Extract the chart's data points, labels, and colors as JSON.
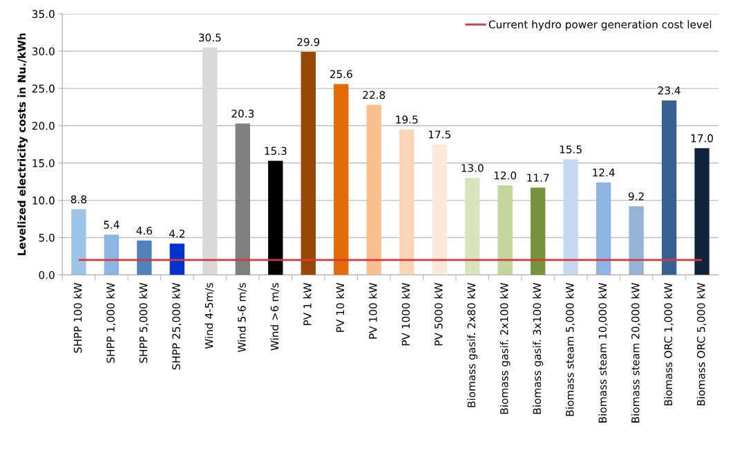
{
  "chart_data": {
    "type": "bar",
    "ylabel": "Levelized electricity costs in Nu./kWh",
    "categories": [
      "SHPP 100 kW",
      "SHPP 1,000 kW",
      "SHPP 5,000 kW",
      "SHPP 25,000 kW",
      "Wind 4-5m/s",
      "Wind 5-6 m/s",
      "Wind >6 m/s",
      "PV 1 kW",
      "PV 10 kW",
      "PV 100 kW",
      "PV 1000 kW",
      "PV 5000 kW",
      "Biomass gasif. 2x80 kW",
      "Biomass gasif. 2x100 kW",
      "Biomass gasif. 3x100 kW",
      "Biomass steam 5,000 kW",
      "Biomass steam 10,000 kW",
      "Biomass steam 20,000 kW",
      "Biomass ORC 1,000 kW",
      "Biomass ORC 5,000 kW"
    ],
    "values": [
      8.8,
      5.4,
      4.6,
      4.2,
      30.5,
      20.3,
      15.3,
      29.9,
      25.6,
      22.8,
      19.5,
      17.5,
      13.0,
      12.0,
      11.7,
      15.5,
      12.4,
      9.2,
      23.4,
      17.0
    ],
    "value_labels": [
      "8.8",
      "5.4",
      "4.6",
      "4.2",
      "30.5",
      "20.3",
      "15.3",
      "29.9",
      "25.6",
      "22.8",
      "19.5",
      "17.5",
      "13.0",
      "12.0",
      "11.7",
      "15.5",
      "12.4",
      "9.2",
      "23.4",
      "17.0"
    ],
    "colors": [
      "#9dc3e6",
      "#8db4e2",
      "#4f81bd",
      "#0033cc",
      "#d9d9d9",
      "#808080",
      "#000000",
      "#974706",
      "#e36c09",
      "#fabf8f",
      "#fcd5b4",
      "#fde9d9",
      "#d7e4bc",
      "#c3d69b",
      "#77933c",
      "#c6d9f1",
      "#8db4e2",
      "#95b3d7",
      "#366092",
      "#10243e"
    ],
    "ylim": [
      0,
      35
    ],
    "yticks": [
      {
        "value": 0,
        "label": "0.0"
      },
      {
        "value": 5,
        "label": "5.0"
      },
      {
        "value": 10,
        "label": "10.0"
      },
      {
        "value": 15,
        "label": "15.0"
      },
      {
        "value": 20,
        "label": "20.0"
      },
      {
        "value": 25,
        "label": "25.0"
      },
      {
        "value": 30,
        "label": "30.0"
      },
      {
        "value": 35,
        "label": "35.0"
      }
    ],
    "ref_lines": [
      {
        "axis": "y",
        "value": 2.0,
        "label": "Current hydro power generation cost level",
        "color": "#d9383a",
        "line_style": "solid"
      }
    ],
    "grid": "y",
    "legend": "top right"
  }
}
